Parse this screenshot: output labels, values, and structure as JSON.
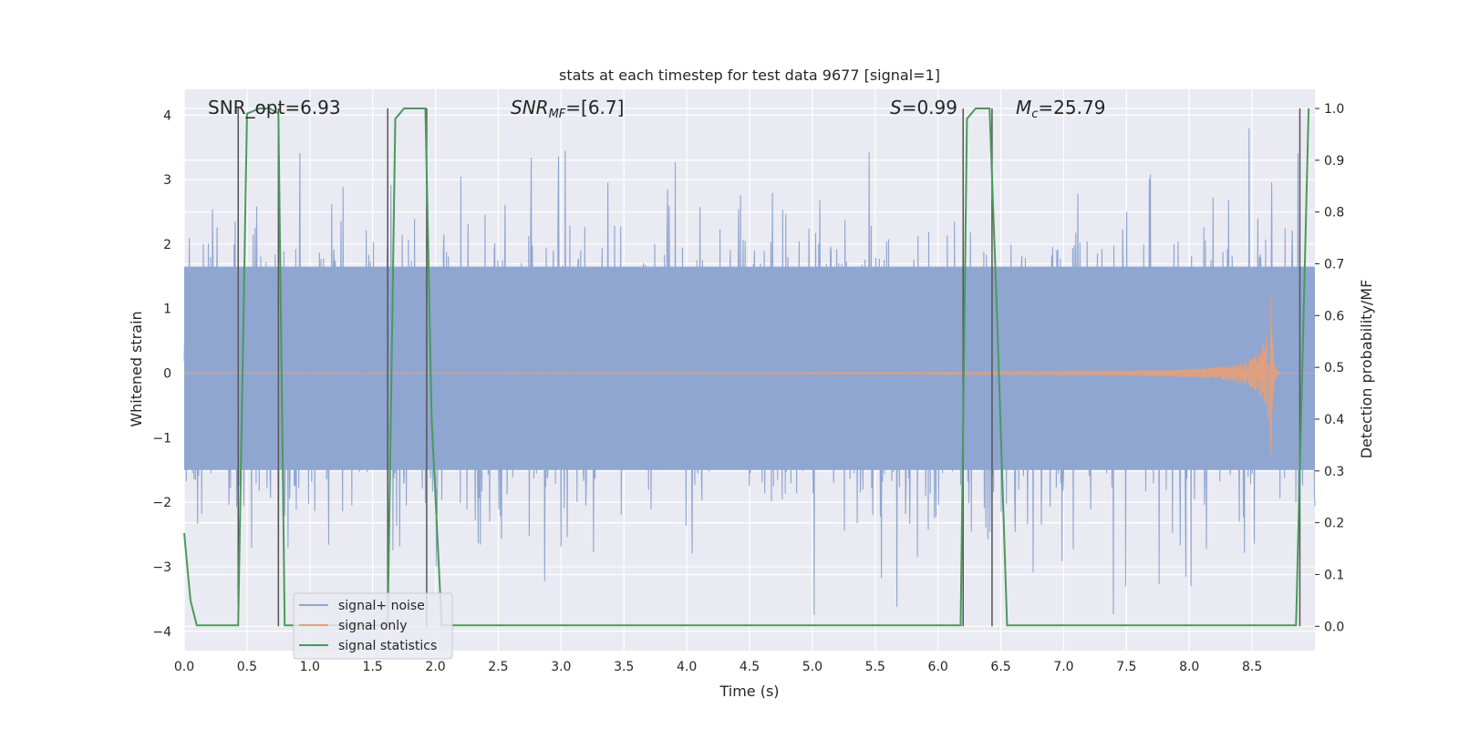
{
  "chart_data": {
    "type": "line",
    "title": "stats at each timestep for test data 9677 [signal=1]",
    "xlabel": "Time (s)",
    "ylabel": "Whitened strain",
    "y2label": "Detection probability/MF",
    "xlim": [
      0,
      9
    ],
    "ylim": [
      -4.3,
      4.4
    ],
    "y2lim": [
      -0.047,
      1.037
    ],
    "x_ticks": [
      0.0,
      0.5,
      1.0,
      1.5,
      2.0,
      2.5,
      3.0,
      3.5,
      4.0,
      4.5,
      5.0,
      5.5,
      6.0,
      6.5,
      7.0,
      7.5,
      8.0,
      8.5
    ],
    "x_tick_labels": [
      "0.0",
      "0.5",
      "1.0",
      "1.5",
      "2.0",
      "2.5",
      "3.0",
      "3.5",
      "4.0",
      "4.5",
      "5.0",
      "5.5",
      "6.0",
      "6.5",
      "7.0",
      "7.5",
      "8.0",
      "8.5"
    ],
    "y_ticks": [
      4,
      3,
      2,
      1,
      0,
      -1,
      -2,
      -3,
      -4
    ],
    "y_tick_labels": [
      "4",
      "3",
      "2",
      "1",
      "0",
      "−1",
      "−2",
      "−3",
      "−4"
    ],
    "y2_ticks": [
      1.0,
      0.9,
      0.8,
      0.7,
      0.6,
      0.5,
      0.4,
      0.3,
      0.2,
      0.1,
      0.0
    ],
    "y2_tick_labels": [
      "1.0",
      "0.9",
      "0.8",
      "0.7",
      "0.6",
      "0.5",
      "0.4",
      "0.3",
      "0.2",
      "0.1",
      "0.0"
    ],
    "grid": true,
    "legend_position": "bottom-left",
    "series": [
      {
        "name": "signal+ noise",
        "axis": "left",
        "color": "#8fa6d0",
        "style": "dense noise trace",
        "approx_abs_range": [
          -3.8,
          3.9
        ]
      },
      {
        "name": "signal only",
        "axis": "left",
        "color": "#e0a080",
        "style": "chirp",
        "chirp_peak_time": 8.65,
        "chirp_peak_amplitude": 1.6
      },
      {
        "name": "signal statistics",
        "axis": "right",
        "color": "#4a9a5a",
        "x": [
          0.0,
          0.05,
          0.1,
          0.43,
          0.5,
          0.6,
          0.68,
          0.75,
          0.8,
          1.62,
          1.68,
          1.75,
          1.92,
          1.97,
          2.05,
          6.18,
          6.23,
          6.3,
          6.41,
          6.47,
          6.55,
          8.85,
          8.9,
          8.95
        ],
        "y": [
          0.18,
          0.05,
          0.002,
          0.002,
          0.99,
          1.0,
          1.0,
          0.99,
          0.002,
          0.002,
          0.98,
          1.0,
          1.0,
          0.4,
          0.002,
          0.002,
          0.98,
          1.0,
          1.0,
          0.6,
          0.002,
          0.002,
          0.5,
          1.0
        ]
      }
    ],
    "vertical_lines": [
      0.43,
      0.75,
      1.62,
      1.93,
      6.2,
      6.43,
      8.88
    ],
    "annotations": [
      {
        "text": "SNR_opt=6.93",
        "x": 0.2
      },
      {
        "text": "SNR",
        "sub": "MF",
        "value": "=[6.7]",
        "italic": true,
        "x": 2.6
      },
      {
        "text": "S",
        "value": "=0.99",
        "italic": true,
        "x": 5.5
      },
      {
        "text": "M",
        "sub": "c",
        "value": "=25.79",
        "italic": true,
        "x": 6.6
      }
    ]
  }
}
